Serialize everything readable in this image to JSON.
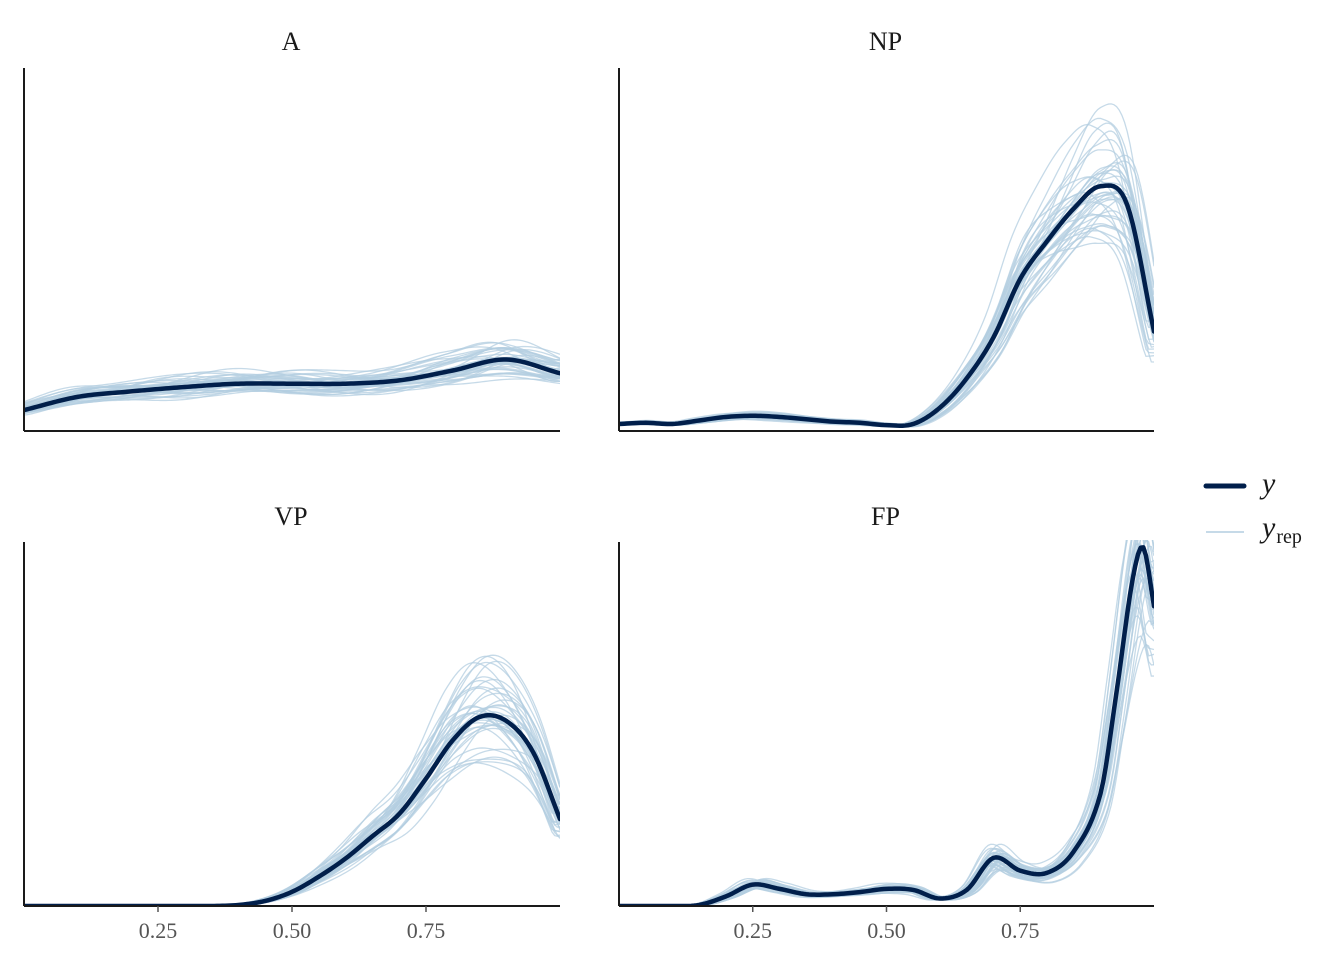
{
  "colors": {
    "y": "#011f4b",
    "yrep": "#b3cde0",
    "axis": "#1a1a1a",
    "tick_text": "#555555"
  },
  "legend": {
    "y_label": "y",
    "yrep_label": "y",
    "yrep_subscript": "rep",
    "placement": "right"
  },
  "chart_data": {
    "type": "line",
    "subtype": "ppc-density-overlay",
    "xlim": [
      0.0,
      1.0
    ],
    "x_ticks": [
      0.25,
      0.5,
      0.75
    ],
    "x_tick_labels": [
      "0.25",
      "0.50",
      "0.75"
    ],
    "y_axis_labels_shown": false,
    "grid": false,
    "n_yrep_draws": 40,
    "facets": [
      {
        "title": "A",
        "show_x_ticks": false,
        "ylim": [
          0,
          6.6
        ],
        "y_density": {
          "x": [
            0.0,
            0.1,
            0.2,
            0.3,
            0.4,
            0.5,
            0.6,
            0.7,
            0.8,
            0.9,
            1.0
          ],
          "y": [
            0.38,
            0.62,
            0.72,
            0.8,
            0.86,
            0.86,
            0.86,
            0.92,
            1.1,
            1.3,
            1.05
          ]
        }
      },
      {
        "title": "NP",
        "show_x_ticks": false,
        "ylim": [
          0,
          3.1
        ],
        "y_density": {
          "x": [
            0.0,
            0.05,
            0.1,
            0.15,
            0.2,
            0.25,
            0.3,
            0.35,
            0.4,
            0.45,
            0.5,
            0.55,
            0.6,
            0.65,
            0.7,
            0.75,
            0.8,
            0.85,
            0.9,
            0.95,
            1.0
          ],
          "y": [
            0.06,
            0.07,
            0.06,
            0.09,
            0.12,
            0.13,
            0.12,
            0.1,
            0.08,
            0.07,
            0.05,
            0.06,
            0.2,
            0.45,
            0.8,
            1.3,
            1.62,
            1.9,
            2.09,
            1.93,
            0.85
          ]
        }
      },
      {
        "title": "VP",
        "show_x_ticks": true,
        "ylim": [
          0,
          3.6
        ],
        "y_density": {
          "x": [
            0.0,
            0.1,
            0.2,
            0.3,
            0.35,
            0.4,
            0.45,
            0.5,
            0.55,
            0.6,
            0.65,
            0.7,
            0.75,
            0.8,
            0.85,
            0.9,
            0.95,
            1.0
          ],
          "y": [
            0.0,
            0.0,
            0.0,
            0.0,
            0.0,
            0.01,
            0.05,
            0.14,
            0.29,
            0.47,
            0.69,
            0.91,
            1.26,
            1.64,
            1.87,
            1.83,
            1.52,
            0.86
          ]
        }
      },
      {
        "title": "FP",
        "show_x_ticks": true,
        "ylim": [
          0,
          6.8
        ],
        "y_density": {
          "x": [
            0.0,
            0.1,
            0.15,
            0.2,
            0.25,
            0.3,
            0.35,
            0.4,
            0.45,
            0.5,
            0.55,
            0.6,
            0.65,
            0.7,
            0.75,
            0.8,
            0.85,
            0.9,
            0.93,
            0.96,
            0.98,
            1.0
          ],
          "y": [
            0.0,
            0.0,
            0.02,
            0.18,
            0.4,
            0.32,
            0.22,
            0.22,
            0.26,
            0.32,
            0.3,
            0.14,
            0.3,
            0.9,
            0.66,
            0.62,
            1.02,
            2.1,
            4.0,
            6.1,
            6.7,
            5.6
          ]
        }
      }
    ]
  }
}
